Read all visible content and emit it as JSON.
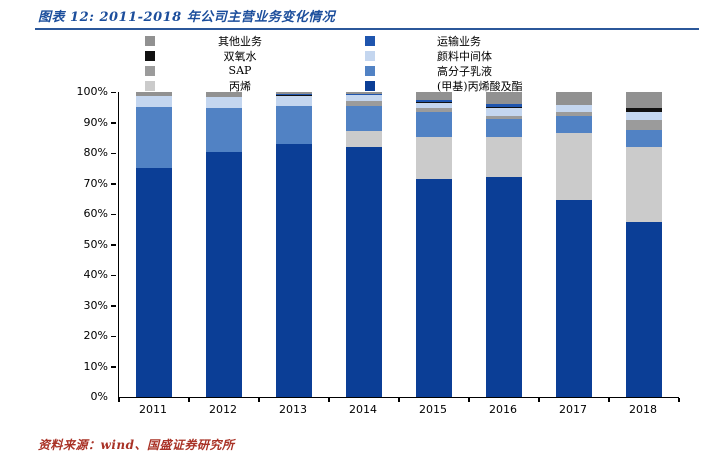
{
  "title": "图表 12:  2011-2018 年公司主营业务变化情况",
  "source_note": "资料来源：wind、国盛证券研究所",
  "style": {
    "title_color": "#1C4E9C",
    "rule_color": "#2B579A",
    "source_color": "#A93226",
    "axis_color": "#000000",
    "background": "#FFFFFF"
  },
  "legend": {
    "left_column": [
      "其他业务",
      "双氧水",
      "SAP",
      "丙烯"
    ],
    "right_column": [
      "运输业务",
      "颜料中间体",
      "高分子乳液",
      "(甲基)丙烯酸及酯"
    ]
  },
  "chart_data": {
    "type": "bar",
    "stacked": true,
    "unit": "percent",
    "ylim": [
      0,
      100
    ],
    "grid": false,
    "yticks": [
      "0%",
      "10%",
      "20%",
      "30%",
      "40%",
      "50%",
      "60%",
      "70%",
      "80%",
      "90%",
      "100%"
    ],
    "categories": [
      "2011",
      "2012",
      "2013",
      "2014",
      "2015",
      "2016",
      "2017",
      "2018"
    ],
    "series": [
      {
        "name": "(甲基)丙烯酸及酯",
        "color": "#0B3E96",
        "values": [
          75.1,
          80.4,
          82.8,
          82.0,
          71.4,
          72.0,
          64.6,
          57.5
        ]
      },
      {
        "name": "丙烯",
        "color": "#CBCBCB",
        "values": [
          0,
          0,
          0,
          5.2,
          13.7,
          13.1,
          21.9,
          24.6
        ]
      },
      {
        "name": "高分子乳液",
        "color": "#5182C4",
        "values": [
          20.0,
          14.2,
          12.5,
          8.3,
          8.2,
          6.0,
          5.8,
          5.5
        ]
      },
      {
        "name": "SAP",
        "color": "#9B9B9B",
        "values": [
          0,
          0,
          0,
          1.6,
          1.6,
          1.1,
          1.3,
          3.3
        ]
      },
      {
        "name": "颜料中间体",
        "color": "#C4D6EF",
        "values": [
          3.5,
          3.8,
          3.5,
          2.0,
          1.6,
          2.7,
          2.0,
          2.7
        ]
      },
      {
        "name": "双氧水",
        "color": "#111111",
        "values": [
          0,
          0,
          0.3,
          0,
          0.3,
          0.3,
          0,
          1.1
        ]
      },
      {
        "name": "运输业务",
        "color": "#1F55AE",
        "values": [
          0,
          0,
          0.4,
          0.4,
          0.6,
          0.8,
          0,
          0
        ]
      },
      {
        "name": "其他业务",
        "color": "#919191",
        "values": [
          1.4,
          1.6,
          0.5,
          0.5,
          2.6,
          4.0,
          4.4,
          5.3
        ]
      }
    ]
  }
}
